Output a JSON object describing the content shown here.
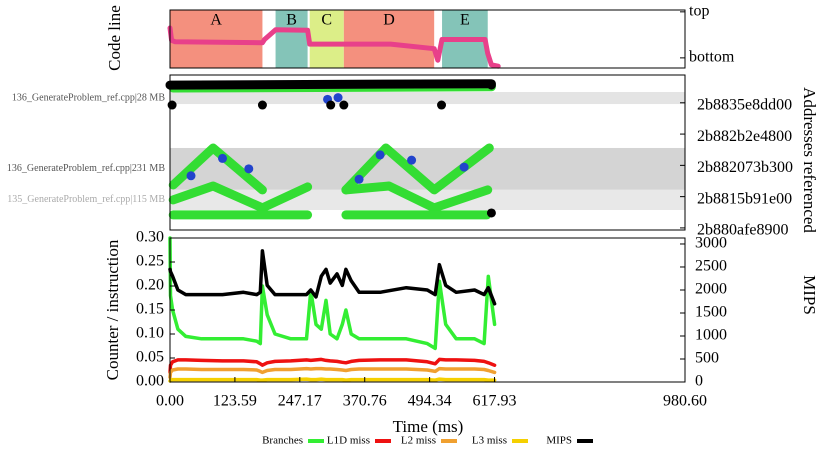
{
  "chart_data": [
    {
      "type": "timeline",
      "ylabel": "Code line",
      "xlim": [
        0,
        980.6
      ],
      "ylim": [
        -0.22,
        1.04
      ],
      "yticks": [
        {
          "value": 1,
          "label": "top"
        },
        {
          "value": 0,
          "label": "bottom"
        }
      ],
      "phases": [
        {
          "label": "A",
          "start": 0,
          "end": 176,
          "color": "#f4907e"
        },
        {
          "label": "B",
          "start": 201,
          "end": 262,
          "color": "#84c4b8"
        },
        {
          "label": "C",
          "start": 266,
          "end": 331,
          "color": "#dcee88"
        },
        {
          "label": "D",
          "start": 331,
          "end": 503,
          "color": "#f4907e"
        },
        {
          "label": "E",
          "start": 518,
          "end": 605,
          "color": "#84c4b8"
        }
      ],
      "series": [
        {
          "color": "#e8408a",
          "x": [
            0,
            3,
            10,
            176,
            180,
            190,
            201,
            262,
            266,
            331,
            340,
            420,
            503,
            510,
            518,
            600,
            605,
            612,
            625
          ],
          "values": [
            0.65,
            0.38,
            0.35,
            0.33,
            0.4,
            0.5,
            0.61,
            0.6,
            0.3,
            0.3,
            0.3,
            0.3,
            0.2,
            -0.05,
            0.4,
            0.4,
            0.1,
            -0.15,
            -0.18
          ]
        }
      ]
    },
    {
      "type": "scatter",
      "ylabel": "Addresses referenced",
      "xlim": [
        0,
        980.6
      ],
      "ylim": [
        47863288000000,
        47864180000000
      ],
      "yticks": [
        {
          "value": 47864020000000,
          "label": "2b8835e8dd00"
        },
        {
          "value": 47863840000000,
          "label": "2b882b2e4800"
        },
        {
          "value": 47863660000000,
          "label": "2b882073b300"
        },
        {
          "value": 47863480000000,
          "label": "2b8815b91e00"
        },
        {
          "value": 47863300000000,
          "label": "2b880afe8900"
        }
      ],
      "regions": [
        {
          "label": "136_GenerateProblem_ref.cpp|28 MB",
          "range": [
            47864013000000,
            47864082000000
          ],
          "color": "#e4e4e4",
          "text_color": "#555555"
        },
        {
          "label": "136_GenerateProblem_ref.cpp|231 MB",
          "range": [
            47863519000000,
            47863760000000
          ],
          "color": "#d4d4d4",
          "text_color": "#555555"
        },
        {
          "label": "135_GenerateProblem_ref.cpp|115 MB",
          "range": [
            47863403000000,
            47863519000000
          ],
          "color": "#e8e8e8",
          "text_color": "#aaaaaa"
        }
      ],
      "series": [
        {
          "color": "#33dd33",
          "style": "trail",
          "x": [
            6,
            82,
            176,
            null,
            335,
            411,
            503,
            608
          ],
          "values": [
            47863547000000,
            47863760000000,
            47863519000000,
            null,
            47863519000000,
            47863760000000,
            47863519000000,
            47863760000000
          ]
        },
        {
          "color": "#33dd33",
          "style": "trail",
          "x": [
            6,
            82,
            176,
            262,
            null,
            335,
            417,
            503,
            605
          ],
          "values": [
            47863461000000,
            47863541000000,
            47863415000000,
            47863536000000,
            null,
            47863519000000,
            47863541000000,
            47863415000000,
            47863519000000
          ]
        },
        {
          "color": "#33dd33",
          "style": "trail",
          "x": [
            6,
            262,
            null,
            335,
            603
          ],
          "values": [
            47863375000000,
            47863375000000,
            null,
            47863375000000,
            47863375000000
          ]
        },
        {
          "color": "#33dd33",
          "style": "trail",
          "x": [
            6,
            612
          ],
          "values": [
            47864105000000,
            47864112000000
          ]
        },
        {
          "color": "#000000",
          "style": "trail",
          "x": [
            0,
            612
          ],
          "values": [
            47864122000000,
            47864130000000
          ]
        },
        {
          "color": "#2244cc",
          "style": "dots",
          "x": [
            40,
            100,
            150,
            360,
            400,
            460,
            560,
            300,
            320
          ],
          "values": [
            47863600000000,
            47863700000000,
            47863640000000,
            47863580000000,
            47863720000000,
            47863690000000,
            47863650000000,
            47864040000000,
            47864050000000
          ]
        },
        {
          "color": "#000000",
          "style": "dots",
          "x": [
            4,
            176,
            306,
            331,
            517,
            612,
            612
          ],
          "values": [
            47864007000000,
            47864007000000,
            47864007000000,
            47864007000000,
            47864007000000,
            47863386000000,
            47864122000000
          ]
        }
      ]
    },
    {
      "type": "line",
      "ylabel": "Counter / instruction",
      "y2label": "MIPS",
      "xlabel": "Time (ms)",
      "xlim": [
        0,
        980.6
      ],
      "ylim": [
        0,
        0.3
      ],
      "y2lim": [
        0,
        3130
      ],
      "xticks": [
        {
          "value": 0,
          "label": "0.00"
        },
        123.59,
        247.17,
        370.76,
        494.34,
        617.93,
        {
          "value": 980.6,
          "label": "980.60"
        }
      ],
      "yticks": [
        {
          "value": 0,
          "label": "0.00"
        },
        0.05,
        {
          "value": 0.1,
          "label": "0.10"
        },
        0.15,
        {
          "value": 0.2,
          "label": "0.20"
        },
        0.25,
        {
          "value": 0.3,
          "label": "0.30"
        }
      ],
      "y2ticks": [
        0,
        500,
        1000,
        1500,
        2000,
        2500,
        3000
      ],
      "x": [
        0,
        1,
        5,
        15,
        30,
        60,
        100,
        140,
        165,
        172,
        176,
        185,
        200,
        230,
        260,
        268,
        278,
        288,
        297,
        305,
        318,
        328,
        335,
        345,
        360,
        400,
        450,
        490,
        505,
        513,
        525,
        545,
        580,
        598,
        606,
        618
      ],
      "series": [
        {
          "name": "Branches",
          "color": "#33ee33",
          "values": [
            0.3,
            0.18,
            0.15,
            0.11,
            0.095,
            0.09,
            0.09,
            0.09,
            0.085,
            0.08,
            0.2,
            0.14,
            0.1,
            0.09,
            0.09,
            0.19,
            0.12,
            0.11,
            0.17,
            0.1,
            0.09,
            0.12,
            0.15,
            0.1,
            0.09,
            0.09,
            0.09,
            0.08,
            0.07,
            0.21,
            0.12,
            0.09,
            0.09,
            0.08,
            0.22,
            0.12
          ]
        },
        {
          "name": "L1D miss",
          "color": "#ee1111",
          "values": [
            0.02,
            0.035,
            0.042,
            0.046,
            0.046,
            0.045,
            0.044,
            0.044,
            0.042,
            0.038,
            0.035,
            0.04,
            0.043,
            0.044,
            0.046,
            0.045,
            0.046,
            0.047,
            0.045,
            0.044,
            0.043,
            0.041,
            0.04,
            0.043,
            0.045,
            0.046,
            0.046,
            0.042,
            0.038,
            0.047,
            0.046,
            0.046,
            0.045,
            0.043,
            0.04,
            0.035
          ]
        },
        {
          "name": "L2 miss",
          "color": "#f0a030",
          "values": [
            0.01,
            0.02,
            0.025,
            0.027,
            0.027,
            0.026,
            0.026,
            0.026,
            0.025,
            0.022,
            0.02,
            0.024,
            0.026,
            0.026,
            0.028,
            0.027,
            0.028,
            0.028,
            0.027,
            0.027,
            0.026,
            0.025,
            0.024,
            0.026,
            0.027,
            0.027,
            0.027,
            0.025,
            0.022,
            0.028,
            0.027,
            0.027,
            0.027,
            0.026,
            0.024,
            0.02
          ]
        },
        {
          "name": "L3 miss",
          "color": "#f5d000",
          "values": [
            0.002,
            0.004,
            0.005,
            0.005,
            0.005,
            0.005,
            0.005,
            0.005,
            0.005,
            0.004,
            0.004,
            0.005,
            0.005,
            0.005,
            0.006,
            0.005,
            0.005,
            0.006,
            0.005,
            0.005,
            0.005,
            0.005,
            0.004,
            0.005,
            0.005,
            0.005,
            0.005,
            0.005,
            0.004,
            0.006,
            0.005,
            0.005,
            0.005,
            0.005,
            0.004,
            0.004
          ]
        },
        {
          "name": "MIPS",
          "color": "#000000",
          "axis": "y2",
          "values": [
            2450,
            2400,
            2300,
            2000,
            1900,
            1900,
            1900,
            1950,
            1900,
            1950,
            2850,
            2100,
            1900,
            1900,
            1900,
            2000,
            1850,
            2300,
            2450,
            2150,
            2350,
            2100,
            2450,
            2200,
            1950,
            1950,
            2050,
            2000,
            1900,
            2550,
            2100,
            1950,
            2000,
            1900,
            2050,
            1700
          ]
        }
      ]
    }
  ]
}
